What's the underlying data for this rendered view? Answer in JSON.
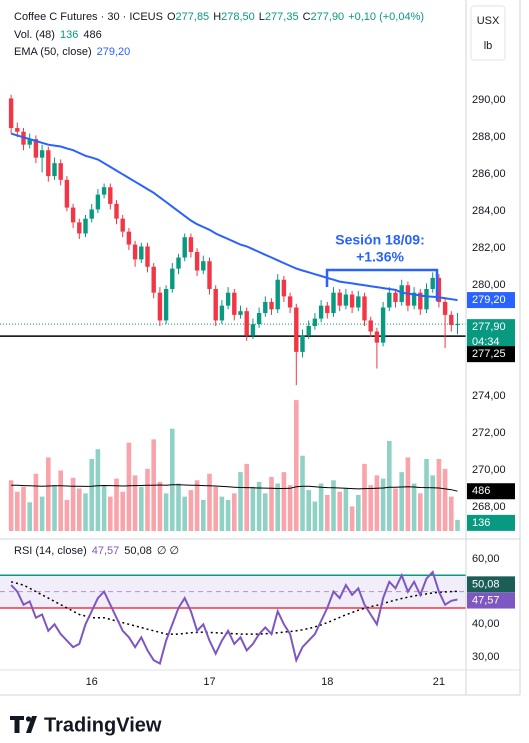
{
  "header": {
    "symbol": "Coffee C Futures · 30 · ICEUS",
    "ohlc": [
      {
        "key": "O",
        "value": "277,85"
      },
      {
        "key": "H",
        "value": "278,50"
      },
      {
        "key": "L",
        "value": "277,35"
      },
      {
        "key": "C",
        "value": "277,90"
      }
    ],
    "change": "+0,10 (+0,04%)",
    "unit": [
      "USX",
      "lb"
    ],
    "countdown": "04:34",
    "brand": "TradingView"
  },
  "chart_data": [
    {
      "type": "candlestick",
      "categories": [
        null,
        null,
        null,
        null,
        null,
        null,
        null,
        null,
        null,
        null,
        null,
        null,
        null,
        "16",
        null,
        null,
        null,
        null,
        null,
        null,
        null,
        null,
        null,
        null,
        null,
        null,
        null,
        null,
        null,
        null,
        null,
        null,
        "17",
        null,
        null,
        null,
        null,
        null,
        null,
        null,
        null,
        null,
        null,
        null,
        null,
        null,
        null,
        null,
        null,
        null,
        null,
        "18",
        null,
        null,
        null,
        null,
        null,
        null,
        null,
        null,
        null,
        null,
        null,
        null,
        null,
        null,
        null,
        null,
        null,
        "21",
        null,
        null,
        null
      ],
      "open": [
        290.1,
        288.5,
        288.3,
        287.6,
        287.9,
        286.9,
        287.3,
        285.9,
        286.6,
        285.7,
        284.2,
        283.4,
        282.8,
        283.6,
        284.1,
        284.9,
        285.3,
        284.4,
        283.6,
        282.9,
        282.2,
        281.4,
        282.1,
        281.0,
        279.6,
        278.1,
        279.8,
        280.9,
        281.5,
        282.6,
        281.8,
        280.8,
        281.3,
        279.8,
        278.1,
        278.9,
        279.6,
        278.4,
        278.6,
        277.3,
        277.9,
        278.5,
        279.1,
        278.7,
        280.3,
        279.4,
        278.8,
        276.4,
        277.3,
        277.8,
        278.2,
        278.9,
        278.5,
        279.6,
        278.9,
        279.5,
        278.8,
        279.4,
        278.1,
        277.5,
        276.9,
        278.8,
        279.6,
        279.1,
        280.0,
        278.9,
        279.6,
        278.7,
        279.8,
        280.4,
        279.1,
        278.4,
        277.85
      ],
      "high": [
        290.3,
        288.8,
        288.5,
        288.2,
        288.1,
        287.6,
        287.5,
        286.9,
        286.8,
        285.9,
        284.4,
        283.6,
        283.8,
        284.4,
        285.2,
        285.5,
        285.5,
        284.6,
        283.8,
        283.1,
        282.4,
        282.3,
        282.3,
        281.2,
        279.9,
        280.0,
        281.2,
        281.7,
        282.8,
        282.8,
        282.0,
        281.6,
        281.5,
        280.0,
        279.2,
        279.9,
        279.8,
        278.9,
        278.8,
        278.2,
        278.8,
        279.4,
        279.3,
        280.6,
        280.5,
        279.6,
        279.0,
        277.6,
        278.1,
        278.5,
        279.2,
        279.1,
        279.9,
        279.8,
        279.8,
        279.7,
        279.7,
        279.6,
        278.3,
        277.7,
        279.1,
        279.9,
        279.8,
        280.3,
        280.2,
        279.9,
        279.8,
        280.1,
        280.7,
        280.6,
        279.3,
        278.6,
        278.5
      ],
      "low": [
        288.2,
        288.0,
        287.3,
        287.4,
        286.6,
        286.1,
        285.6,
        285.7,
        285.4,
        284.0,
        283.1,
        282.5,
        282.6,
        283.4,
        283.9,
        284.7,
        284.1,
        283.3,
        282.6,
        281.9,
        281.0,
        281.2,
        280.7,
        279.3,
        277.8,
        277.9,
        279.6,
        280.6,
        281.3,
        281.5,
        280.5,
        280.6,
        279.5,
        277.8,
        277.9,
        278.7,
        278.1,
        278.2,
        277.0,
        277.1,
        277.7,
        278.3,
        278.4,
        278.5,
        279.1,
        278.5,
        274.6,
        276.1,
        277.1,
        277.6,
        278.0,
        278.2,
        278.3,
        278.6,
        278.7,
        278.5,
        278.6,
        277.8,
        277.2,
        275.5,
        276.7,
        278.6,
        278.8,
        278.9,
        278.6,
        278.7,
        278.4,
        278.5,
        279.6,
        278.8,
        276.6,
        277.5,
        277.35
      ],
      "close": [
        288.5,
        288.3,
        287.6,
        287.9,
        286.9,
        287.3,
        285.9,
        286.6,
        285.7,
        284.2,
        283.4,
        282.8,
        283.6,
        284.1,
        284.9,
        285.3,
        284.4,
        283.6,
        282.9,
        282.2,
        281.4,
        282.1,
        281.0,
        279.6,
        278.1,
        279.8,
        280.9,
        281.5,
        282.6,
        281.8,
        280.8,
        281.3,
        279.8,
        278.1,
        278.9,
        279.6,
        278.4,
        278.6,
        277.3,
        277.9,
        278.5,
        279.1,
        278.7,
        280.3,
        279.4,
        278.8,
        276.4,
        277.3,
        277.8,
        278.2,
        278.9,
        278.5,
        279.6,
        278.9,
        279.5,
        278.8,
        279.4,
        278.1,
        277.5,
        276.9,
        278.8,
        279.6,
        279.1,
        280.0,
        278.9,
        279.6,
        278.7,
        279.8,
        280.4,
        279.1,
        278.4,
        277.85,
        277.9
      ],
      "close_last_label": "277,90",
      "up_color": "#089981",
      "down_color": "#f23645",
      "ylim": [
        266.34,
        295.42
      ],
      "yticks": [
        {
          "value": 268,
          "label": "268,00"
        },
        {
          "value": 270,
          "label": "270,00"
        },
        {
          "value": 272,
          "label": "272,00"
        },
        {
          "value": 274,
          "label": "274,00"
        },
        {
          "value": 280,
          "label": "280,00"
        },
        {
          "value": 282,
          "label": "282,00"
        },
        {
          "value": 284,
          "label": "284,00"
        },
        {
          "value": 286,
          "label": "286,00"
        },
        {
          "value": 288,
          "label": "288,00"
        },
        {
          "value": 290,
          "label": "290,00"
        }
      ],
      "grid": false,
      "ema": {
        "name": "EMA (50, close)",
        "color": "#2962ff",
        "last_label": "279,20",
        "values": [
          288.2,
          288.1,
          288.0,
          287.9,
          287.8,
          287.7,
          287.6,
          287.55,
          287.5,
          287.4,
          287.3,
          287.15,
          287.0,
          286.9,
          286.8,
          286.6,
          286.4,
          286.2,
          286.0,
          285.8,
          285.6,
          285.4,
          285.2,
          285.0,
          284.75,
          284.5,
          284.25,
          284.0,
          283.75,
          283.5,
          283.3,
          283.15,
          283.0,
          282.8,
          282.65,
          282.5,
          282.35,
          282.2,
          282.1,
          281.95,
          281.8,
          281.65,
          281.5,
          281.35,
          281.2,
          281.05,
          280.9,
          280.8,
          280.7,
          280.6,
          280.5,
          280.4,
          280.3,
          280.2,
          280.15,
          280.1,
          280.05,
          280.0,
          279.95,
          279.9,
          279.85,
          279.8,
          279.75,
          279.6,
          279.55,
          279.5,
          279.45,
          279.4,
          279.38,
          279.35,
          279.3,
          279.25,
          279.2
        ]
      },
      "hline": {
        "value": 277.25,
        "label": "277,25",
        "color": "#000000"
      },
      "volume": {
        "name": "Vol. (48)",
        "ylim": [
          0,
          5500
        ],
        "ma_color": "#000000",
        "values": [
          620,
          480,
          540,
          350,
          700,
          420,
          900,
          560,
          740,
          380,
          650,
          520,
          460,
          880,
          1000,
          560,
          420,
          640,
          480,
          1080,
          680,
          540,
          760,
          1120,
          600,
          460,
          1250,
          580,
          420,
          500,
          620,
          380,
          700,
          540,
          420,
          380,
          460,
          720,
          820,
          540,
          600,
          460,
          660,
          580,
          720,
          560,
          1600,
          920,
          500,
          360,
          580,
          440,
          620,
          480,
          520,
          300,
          440,
          820,
          560,
          680,
          640,
          1100,
          520,
          720,
          900,
          580,
          460,
          880,
          680,
          880,
          760,
          420,
          136
        ],
        "ma_values": [
          560,
          558,
          555,
          552,
          550,
          548,
          550,
          552,
          553,
          550,
          548,
          546,
          545,
          548,
          552,
          556,
          555,
          553,
          550,
          552,
          555,
          556,
          558,
          560,
          562,
          560,
          565,
          566,
          562,
          560,
          558,
          555,
          552,
          550,
          545,
          540,
          535,
          532,
          530,
          528,
          526,
          524,
          522,
          520,
          520,
          522,
          540,
          548,
          546,
          540,
          535,
          530,
          528,
          525,
          522,
          518,
          515,
          518,
          520,
          522,
          525,
          535,
          535,
          538,
          540,
          538,
          532,
          530,
          528,
          525,
          515,
          505,
          486
        ]
      },
      "annotation": {
        "lines": [
          "Sesión 18/09:",
          "+1.36%"
        ],
        "color": "#2962ff"
      }
    },
    {
      "type": "line",
      "legend_extra": "∅ ∅",
      "ylim": [
        26.0,
        65.8
      ],
      "yticks": [
        {
          "value": 30,
          "label": "30,00"
        },
        {
          "value": 40,
          "label": "40,00"
        },
        {
          "value": 60,
          "label": "60,00"
        }
      ],
      "bands": [
        {
          "value": 55,
          "color": "#089981"
        },
        {
          "value": 45,
          "color": "#f23645"
        }
      ],
      "midline": 50,
      "series": [
        {
          "name": "RSI (14, close)",
          "color": "#7e57c2",
          "last_label": "47,57",
          "values": [
            52,
            50,
            46,
            47,
            42,
            43,
            38,
            40,
            37,
            35,
            33,
            34,
            40,
            44,
            48,
            50,
            46,
            42,
            38,
            36,
            33,
            36,
            32,
            29,
            28,
            35,
            40,
            45,
            48,
            44,
            38,
            40,
            35,
            31,
            35,
            38,
            34,
            36,
            32,
            34,
            37,
            39,
            37,
            44,
            40,
            37,
            29,
            33,
            35,
            37,
            41,
            45,
            50,
            48,
            52,
            49,
            51,
            46,
            43,
            40,
            48,
            53,
            51,
            55,
            50,
            53,
            49,
            54,
            56,
            50,
            46,
            47.2,
            47.57
          ]
        },
        {
          "color": "#000000",
          "last_label": "50,08",
          "values": [
            53,
            52.5,
            52,
            51,
            50,
            49,
            48,
            47,
            46,
            45,
            44,
            43,
            42.5,
            42,
            42,
            42,
            41.5,
            41,
            40.5,
            40,
            39.5,
            39,
            38.5,
            38,
            37.5,
            37,
            37,
            37,
            37.2,
            37.4,
            37.5,
            37.6,
            37.5,
            37.4,
            37.3,
            37.2,
            37.1,
            37,
            37,
            37,
            37,
            37.1,
            37.2,
            37.4,
            37.6,
            37.8,
            38,
            38.3,
            38.7,
            39.2,
            39.8,
            40.5,
            41.3,
            42.1,
            42.9,
            43.6,
            44.3,
            44.9,
            45.4,
            45.8,
            46.3,
            46.9,
            47.4,
            47.9,
            48.3,
            48.7,
            49.0,
            49.3,
            49.6,
            49.8,
            49.9,
            50.0,
            50.08
          ]
        }
      ]
    }
  ]
}
